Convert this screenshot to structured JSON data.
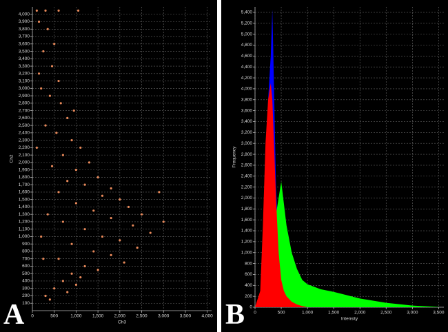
{
  "chart_data": [
    {
      "type": "scatter",
      "panel_label": "A",
      "x_label": "Ch3",
      "y_label": "Ch2",
      "color": "#e8895a",
      "grid": true,
      "x": [
        100,
        300,
        600,
        1050,
        150,
        350,
        500,
        250,
        450,
        600,
        200,
        400,
        650,
        800,
        300,
        550,
        900,
        1100,
        700,
        1300,
        450,
        1000,
        1500,
        800,
        1200,
        1800,
        600,
        1600,
        2000,
        1000,
        2200,
        1400,
        2500,
        1800,
        700,
        2300,
        1200,
        2700,
        1600,
        2000,
        900,
        2400,
        1400,
        1800,
        600,
        2100,
        1200,
        1500,
        900,
        1100,
        700,
        1000,
        500,
        800,
        300,
        400,
        200,
        100,
        350,
        250,
        150,
        950,
        3000,
        2900
      ],
      "values": [
        4050,
        4050,
        4050,
        4050,
        3900,
        3800,
        3600,
        3500,
        3300,
        3100,
        3000,
        2900,
        2800,
        2600,
        2500,
        2400,
        2300,
        2200,
        2100,
        2000,
        1950,
        1900,
        1800,
        1750,
        1700,
        1650,
        1600,
        1550,
        1500,
        1450,
        1400,
        1350,
        1300,
        1250,
        1200,
        1150,
        1100,
        1050,
        1000,
        950,
        900,
        850,
        800,
        750,
        700,
        650,
        600,
        550,
        500,
        450,
        400,
        350,
        300,
        250,
        200,
        150,
        1000,
        2200,
        1300,
        700,
        3200,
        2700,
        1200,
        1600
      ],
      "xlim": [
        0,
        4100
      ],
      "ylim": [
        0,
        4100
      ],
      "xticks": [
        0,
        500,
        {
          "value": 1000,
          "label": "1,000"
        },
        {
          "value": 1500,
          "label": "1,500"
        },
        {
          "value": 2000,
          "label": "2,000"
        },
        {
          "value": 2500,
          "label": "2,500"
        },
        {
          "value": 3000,
          "label": "3,000"
        },
        {
          "value": 3500,
          "label": "3,500"
        },
        {
          "value": 4000,
          "label": "4,000"
        }
      ],
      "yticks": [
        100,
        200,
        300,
        400,
        500,
        600,
        700,
        800,
        900,
        {
          "value": 1000,
          "label": "1,000"
        },
        {
          "value": 1100,
          "label": "1,100"
        },
        {
          "value": 1200,
          "label": "1,200"
        },
        {
          "value": 1300,
          "label": "1,300"
        },
        {
          "value": 1400,
          "label": "1,400"
        },
        {
          "value": 1500,
          "label": "1,500"
        },
        {
          "value": 1600,
          "label": "1,600"
        },
        {
          "value": 1700,
          "label": "1,700"
        },
        {
          "value": 1800,
          "label": "1,800"
        },
        {
          "value": 1900,
          "label": "1,900"
        },
        {
          "value": 2000,
          "label": "2,000"
        },
        {
          "value": 2100,
          "label": "2,100"
        },
        {
          "value": 2200,
          "label": "2,200"
        },
        {
          "value": 2300,
          "label": "2,300"
        },
        {
          "value": 2400,
          "label": "2,400"
        },
        {
          "value": 2500,
          "label": "2,500"
        },
        {
          "value": 2600,
          "label": "2,600"
        },
        {
          "value": 2700,
          "label": "2,700"
        },
        {
          "value": 2800,
          "label": "2,800"
        },
        {
          "value": 2900,
          "label": "2,900"
        },
        {
          "value": 3000,
          "label": "3,000"
        },
        {
          "value": 3100,
          "label": "3,100"
        },
        {
          "value": 3200,
          "label": "3,200"
        },
        {
          "value": 3300,
          "label": "3,300"
        },
        {
          "value": 3400,
          "label": "3,400"
        },
        {
          "value": 3500,
          "label": "3,500"
        },
        {
          "value": 3600,
          "label": "3,600"
        },
        {
          "value": 3700,
          "label": "3,700"
        },
        {
          "value": 3800,
          "label": "3,800"
        },
        {
          "value": 3900,
          "label": "3,900"
        },
        {
          "value": 4000,
          "label": "4,000"
        }
      ]
    },
    {
      "type": "area",
      "panel_label": "B",
      "x_label": "Intensity",
      "y_label": "Frequency",
      "grid": true,
      "x": [
        0,
        100,
        150,
        200,
        250,
        300,
        330,
        350,
        400,
        450,
        500,
        550,
        600,
        700,
        800,
        900,
        1000,
        1250,
        1500,
        1750,
        2000,
        2500,
        3000,
        3500
      ],
      "series": [
        {
          "color": "#0000ff",
          "values": [
            0,
            0,
            500,
            2500,
            3800,
            4600,
            5450,
            4600,
            2200,
            1200,
            400,
            200,
            100,
            50,
            0,
            0,
            0,
            0,
            0,
            0,
            0,
            0,
            0,
            0
          ]
        },
        {
          "color": "#00ff00",
          "values": [
            0,
            0,
            0,
            0,
            0,
            0,
            0,
            1000,
            1700,
            2000,
            2300,
            1900,
            1500,
            1000,
            700,
            500,
            420,
            330,
            280,
            220,
            160,
            80,
            30,
            5
          ]
        },
        {
          "color": "#ff0000",
          "values": [
            0,
            300,
            1500,
            3000,
            3800,
            4100,
            3800,
            3300,
            2000,
            1000,
            500,
            300,
            200,
            100,
            50,
            20,
            0,
            0,
            0,
            0,
            0,
            0,
            0,
            0
          ]
        }
      ],
      "xlim": [
        0,
        3600
      ],
      "ylim": [
        0,
        5500
      ],
      "xticks": [
        0,
        500,
        {
          "value": 1000,
          "label": "1,000"
        },
        {
          "value": 1500,
          "label": "1,500"
        },
        {
          "value": 2000,
          "label": "2,000"
        },
        {
          "value": 2500,
          "label": "2,500"
        },
        {
          "value": 3000,
          "label": "3,000"
        },
        {
          "value": 3500,
          "label": "3,500"
        }
      ],
      "yticks": [
        0,
        200,
        400,
        600,
        800,
        {
          "value": 1000,
          "label": "1,000"
        },
        {
          "value": 1200,
          "label": "1,200"
        },
        {
          "value": 1400,
          "label": "1,400"
        },
        {
          "value": 1600,
          "label": "1,600"
        },
        {
          "value": 1800,
          "label": "1,800"
        },
        {
          "value": 2000,
          "label": "2,000"
        },
        {
          "value": 2200,
          "label": "2,200"
        },
        {
          "value": 2400,
          "label": "2,400"
        },
        {
          "value": 2600,
          "label": "2,600"
        },
        {
          "value": 2800,
          "label": "2,800"
        },
        {
          "value": 3000,
          "label": "3,000"
        },
        {
          "value": 3200,
          "label": "3,200"
        },
        {
          "value": 3400,
          "label": "3,400"
        },
        {
          "value": 3600,
          "label": "3,600"
        },
        {
          "value": 3800,
          "label": "3,800"
        },
        {
          "value": 4000,
          "label": "4,000"
        },
        {
          "value": 4200,
          "label": "4,200"
        },
        {
          "value": 4400,
          "label": "4,400"
        },
        {
          "value": 4600,
          "label": "4,600"
        },
        {
          "value": 4800,
          "label": "4,800"
        },
        {
          "value": 5000,
          "label": "5,000"
        },
        {
          "value": 5200,
          "label": "5,200"
        },
        {
          "value": 5400,
          "label": "5,400"
        }
      ]
    }
  ]
}
